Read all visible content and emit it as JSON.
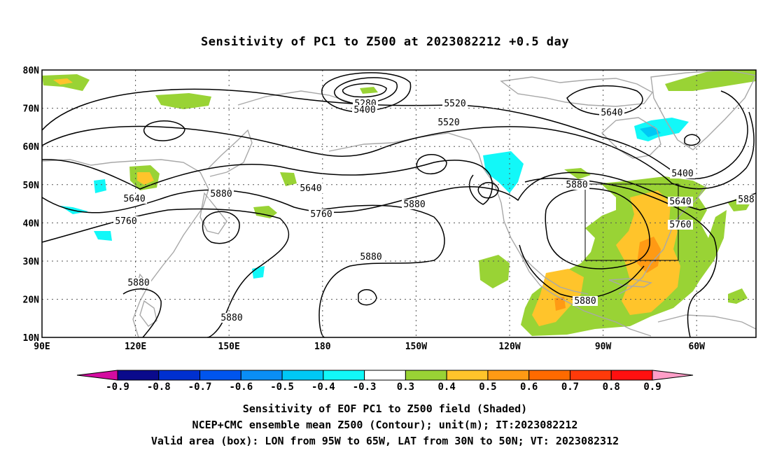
{
  "title": "Sensitivity of PC1 to Z500 at 2023082212 +0.5 day",
  "map": {
    "lon_ticks": [
      "90E",
      "120E",
      "150E",
      "180",
      "150W",
      "120W",
      "90W",
      "60W"
    ],
    "lat_ticks": [
      "80N",
      "70N",
      "60N",
      "50N",
      "40N",
      "30N",
      "20N",
      "10N"
    ],
    "contour_labels": [
      "5280",
      "5400",
      "5520",
      "5640",
      "5400",
      "5520",
      "5640",
      "5640",
      "5640",
      "5760",
      "5760",
      "5760",
      "5880",
      "5880",
      "5880",
      "5880",
      "5880",
      "5880",
      "5880",
      "5880",
      "5880",
      "588"
    ],
    "valid_box": {
      "lon_min": "95W",
      "lon_max": "65W",
      "lat_min": "30N",
      "lat_max": "50N"
    }
  },
  "colorbar": {
    "labels": [
      "-0.9",
      "-0.8",
      "-0.7",
      "-0.6",
      "-0.5",
      "-0.4",
      "-0.3",
      "0.3",
      "0.4",
      "0.5",
      "0.6",
      "0.7",
      "0.8",
      "0.9"
    ],
    "colors": [
      "#0a0a8c",
      "#0030d0",
      "#0055ee",
      "#0a8ef5",
      "#00c8f5",
      "#12f8f8",
      "#ffffff",
      "#99d335",
      "#ffc42b",
      "#ff9a14",
      "#ff6a00",
      "#ff3a0a",
      "#ff1010"
    ],
    "low_end_color": "#d40ca0",
    "high_end_color": "#ff9ec8"
  },
  "caption": {
    "line1": "Sensitivity of EOF PC1 to Z500 field (Shaded)",
    "line2": "NCEP+CMC ensemble mean Z500 (Contour); unit(m); IT:2023082212",
    "line3": "Valid area (box): LON from 95W to 65W, LAT from 30N to 50N; VT: 2023082312"
  }
}
